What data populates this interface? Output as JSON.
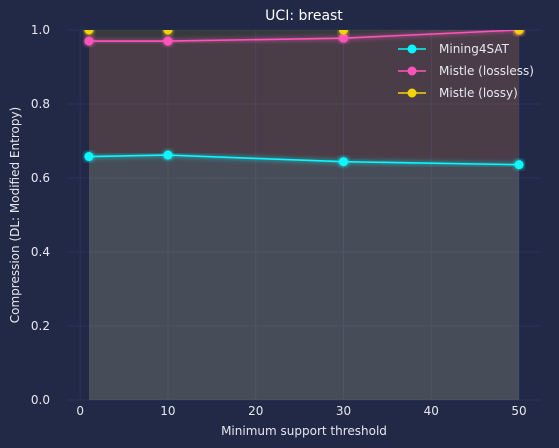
{
  "chart_data": {
    "type": "line",
    "title": "UCI: breast",
    "xlabel": "Minimum support threshold",
    "ylabel": "Compression (DL: Modified Entropy)",
    "x": [
      1,
      10,
      30,
      50
    ],
    "xlim": [
      -1.5,
      52.5
    ],
    "ylim": [
      0.0,
      1.0
    ],
    "xticks": [
      "0",
      "10",
      "20",
      "30",
      "40",
      "50"
    ],
    "yticks": [
      "0.0",
      "0.2",
      "0.4",
      "0.6",
      "0.8",
      "1.0"
    ],
    "grid": true,
    "legend_position": "top-right",
    "series": [
      {
        "name": "Mining4SAT",
        "color": "#08F7FE",
        "values": [
          0.658,
          0.662,
          0.644,
          0.636
        ]
      },
      {
        "name": "Mistle (lossless)",
        "color": "#FE53BB",
        "values": [
          0.97,
          0.97,
          0.978,
          1.0
        ]
      },
      {
        "name": "Mistle (lossy)",
        "color": "#F5D300",
        "values": [
          1.0,
          1.0,
          1.0,
          1.0
        ]
      }
    ]
  }
}
